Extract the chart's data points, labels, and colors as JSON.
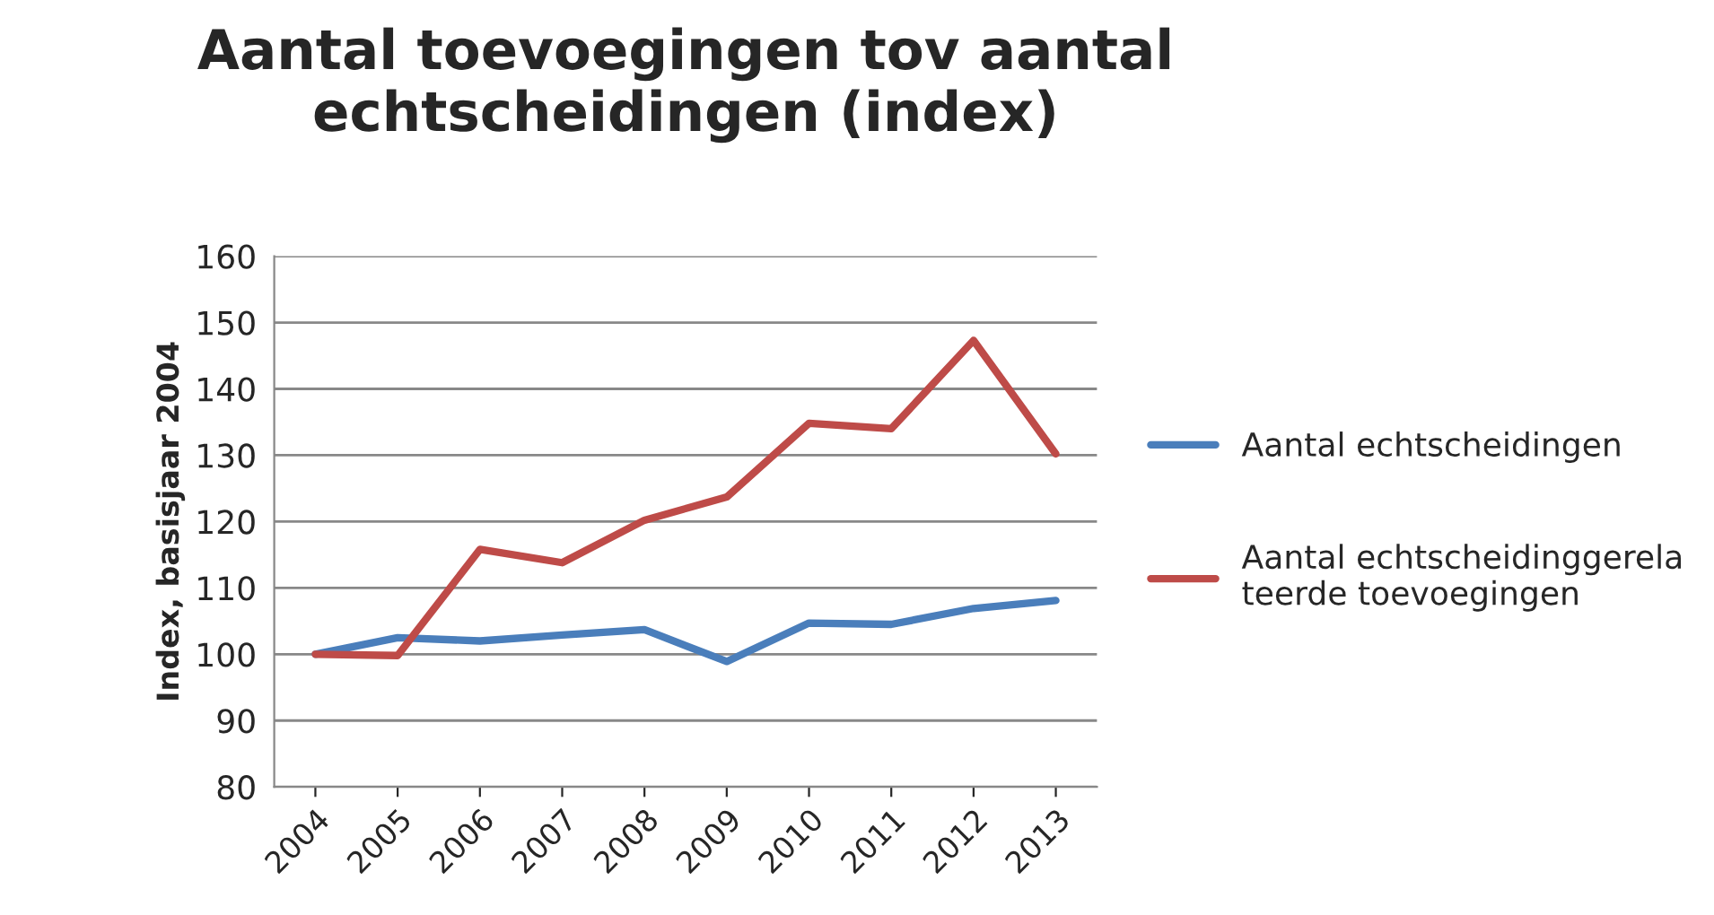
{
  "chart_data": {
    "type": "line",
    "title": "Aantal toevoegingen tov aantal echtscheidingen (index)",
    "ylabel": "Index, basisjaar 2004",
    "categories": [
      "2004",
      "2005",
      "2006",
      "2007",
      "2008",
      "2009",
      "2010",
      "2011",
      "2012",
      "2013"
    ],
    "series": [
      {
        "name": "Aantal echtscheidingen",
        "color": "#4a7ebb",
        "values": [
          100,
          102.5,
          102,
          102.9,
          103.7,
          98.9,
          104.7,
          104.5,
          106.9,
          108.1
        ]
      },
      {
        "name": "Aantal echtscheidinggerelateerde toevoegingen",
        "color": "#be4b48",
        "values": [
          100,
          99.8,
          115.8,
          113.8,
          120.2,
          123.7,
          134.8,
          134,
          147.3,
          130.2
        ]
      }
    ],
    "ylim": [
      80,
      160
    ],
    "yticks": [
      80,
      90,
      100,
      110,
      120,
      130,
      140,
      150,
      160
    ],
    "grid": "y",
    "legend": "right",
    "marker": "none",
    "line_style": "solid"
  }
}
